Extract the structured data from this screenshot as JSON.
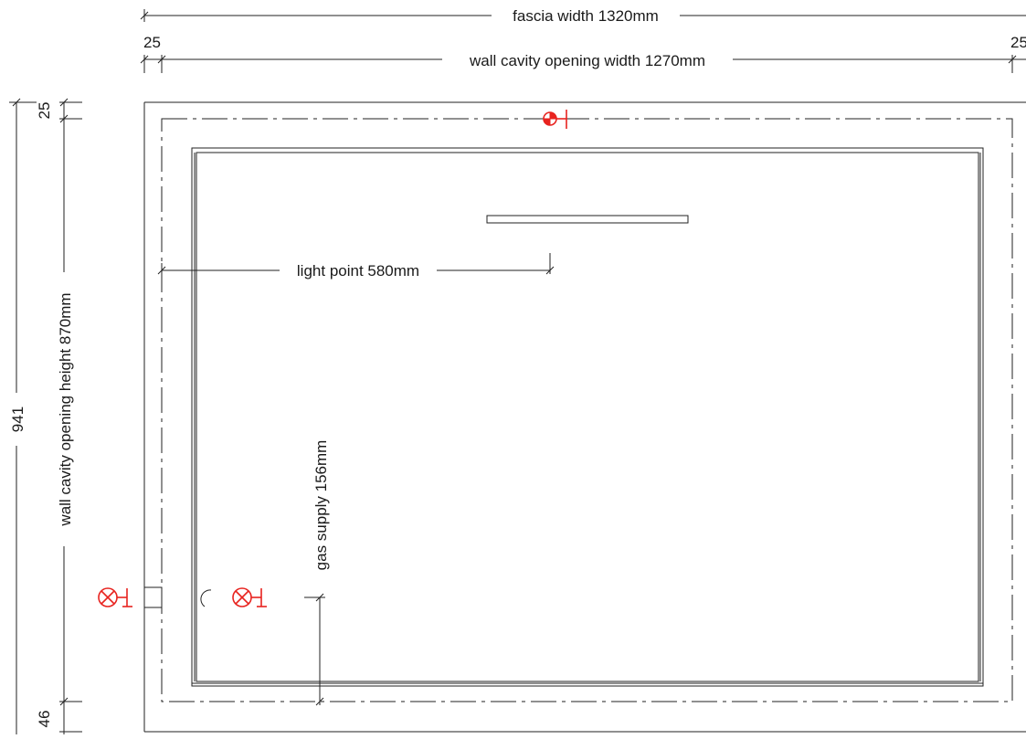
{
  "dimensions": {
    "fascia_width": "fascia width 1320mm",
    "wall_cavity_opening_width": "wall cavity opening width 1270mm",
    "left_margin": "25",
    "right_margin": "25",
    "top_margin": "25",
    "overall_height": "941",
    "wall_cavity_opening_height": "wall cavity opening height 870mm",
    "bottom_margin": "46",
    "light_point": "light point 580mm",
    "gas_supply": "gas supply 156mm"
  },
  "symbols": {
    "light_point_symbol": "light-point-marker",
    "gas_outlet_symbol": "gas-outlet-marker"
  },
  "colors": {
    "line": "#222222",
    "service_markers": "#e8231f"
  }
}
